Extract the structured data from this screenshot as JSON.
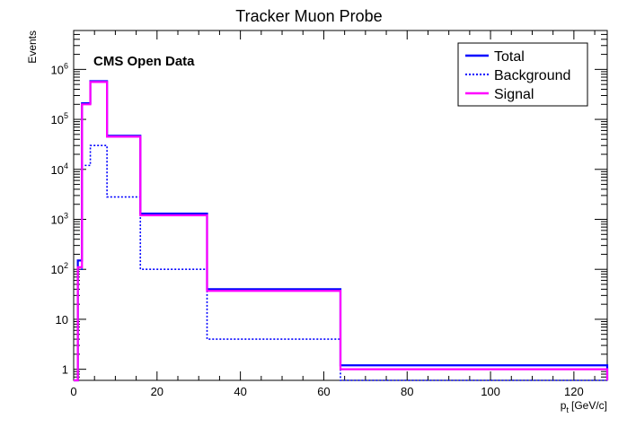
{
  "chart_data": {
    "type": "line",
    "title": "Tracker Muon Probe",
    "xlabel_main": "p",
    "xlabel_sub": "t",
    "xlabel_unit": "[GeV/c]",
    "ylabel": "Events",
    "annotation": "CMS Open Data",
    "xlim": [
      0,
      128
    ],
    "ylim": [
      0.6,
      6000000
    ],
    "y_scale": "log",
    "grid": false,
    "legend_position": "top-right",
    "x_ticks": [
      {
        "value": 0,
        "label": "0"
      },
      {
        "value": 20,
        "label": "20"
      },
      {
        "value": 40,
        "label": "40"
      },
      {
        "value": 60,
        "label": "60"
      },
      {
        "value": 80,
        "label": "80"
      },
      {
        "value": 100,
        "label": "100"
      },
      {
        "value": 120,
        "label": "120"
      }
    ],
    "y_ticks": [
      {
        "value": 1,
        "base": "1",
        "exp": ""
      },
      {
        "value": 10,
        "base": "10",
        "exp": ""
      },
      {
        "value": 100,
        "base": "10",
        "exp": "2"
      },
      {
        "value": 1000,
        "base": "10",
        "exp": "3"
      },
      {
        "value": 10000,
        "base": "10",
        "exp": "4"
      },
      {
        "value": 100000,
        "base": "10",
        "exp": "5"
      },
      {
        "value": 1000000,
        "base": "10",
        "exp": "6"
      }
    ],
    "bin_edges": [
      0,
      1,
      2,
      4,
      8,
      16,
      32,
      64,
      128
    ],
    "series": [
      {
        "name": "Total",
        "color": "#0000ff",
        "style": "solid",
        "values": [
          0.5,
          150,
          210000,
          580000,
          47000,
          1300,
          40,
          1.2
        ]
      },
      {
        "name": "Background",
        "color": "#0000ff",
        "style": "dotted",
        "values": [
          0.5,
          100,
          12000,
          30000,
          2800,
          100,
          4,
          0.5
        ]
      },
      {
        "name": "Signal",
        "color": "#ff00ff",
        "style": "solid",
        "values": [
          0.5,
          110,
          200000,
          560000,
          45000,
          1200,
          37,
          1.0
        ]
      }
    ]
  }
}
